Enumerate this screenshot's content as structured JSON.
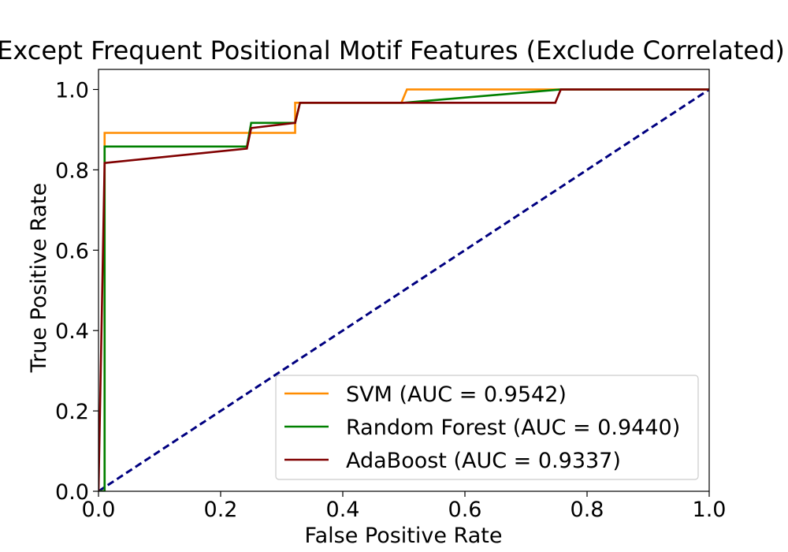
{
  "chart_data": {
    "type": "line",
    "title": "Except Frequent Positional Motif Features (Exclude Correlated)",
    "xlabel": "False Positive Rate",
    "ylabel": "True Positive Rate",
    "xlim": [
      0,
      1
    ],
    "ylim": [
      0,
      1.05
    ],
    "xticks": [
      "0.0",
      "0.2",
      "0.4",
      "0.6",
      "0.8",
      "1.0"
    ],
    "yticks": [
      "0.0",
      "0.2",
      "0.4",
      "0.6",
      "0.8",
      "1.0"
    ],
    "grid": false,
    "legend_position": "lower-right",
    "series": [
      {
        "name": "SVM (AUC = 0.9542)",
        "color": "#ff8c00",
        "points": [
          [
            0,
            0
          ],
          [
            0.01,
            0.0
          ],
          [
            0.01,
            0.892
          ],
          [
            0.322,
            0.892
          ],
          [
            0.322,
            0.967
          ],
          [
            0.496,
            0.967
          ],
          [
            0.505,
            1.0
          ],
          [
            1.0,
            1.0
          ]
        ]
      },
      {
        "name": "Random Forest (AUC = 0.9440)",
        "color": "#008000",
        "points": [
          [
            0,
            0
          ],
          [
            0.01,
            0.0
          ],
          [
            0.01,
            0.858
          ],
          [
            0.243,
            0.858
          ],
          [
            0.25,
            0.917
          ],
          [
            0.322,
            0.917
          ],
          [
            0.33,
            0.967
          ],
          [
            0.5,
            0.967
          ],
          [
            0.757,
            1.0
          ],
          [
            1.0,
            1.0
          ]
        ]
      },
      {
        "name": "AdaBoost (AUC = 0.9337)",
        "color": "#800000",
        "points": [
          [
            0,
            0
          ],
          [
            0.01,
            0.817
          ],
          [
            0.243,
            0.853
          ],
          [
            0.25,
            0.904
          ],
          [
            0.322,
            0.917
          ],
          [
            0.33,
            0.967
          ],
          [
            0.748,
            0.967
          ],
          [
            0.757,
            1.0
          ],
          [
            1.0,
            1.0
          ]
        ]
      }
    ],
    "reference_line": {
      "color": "#000080",
      "style": "dashed",
      "points": [
        [
          0,
          0
        ],
        [
          1,
          1
        ]
      ]
    }
  }
}
